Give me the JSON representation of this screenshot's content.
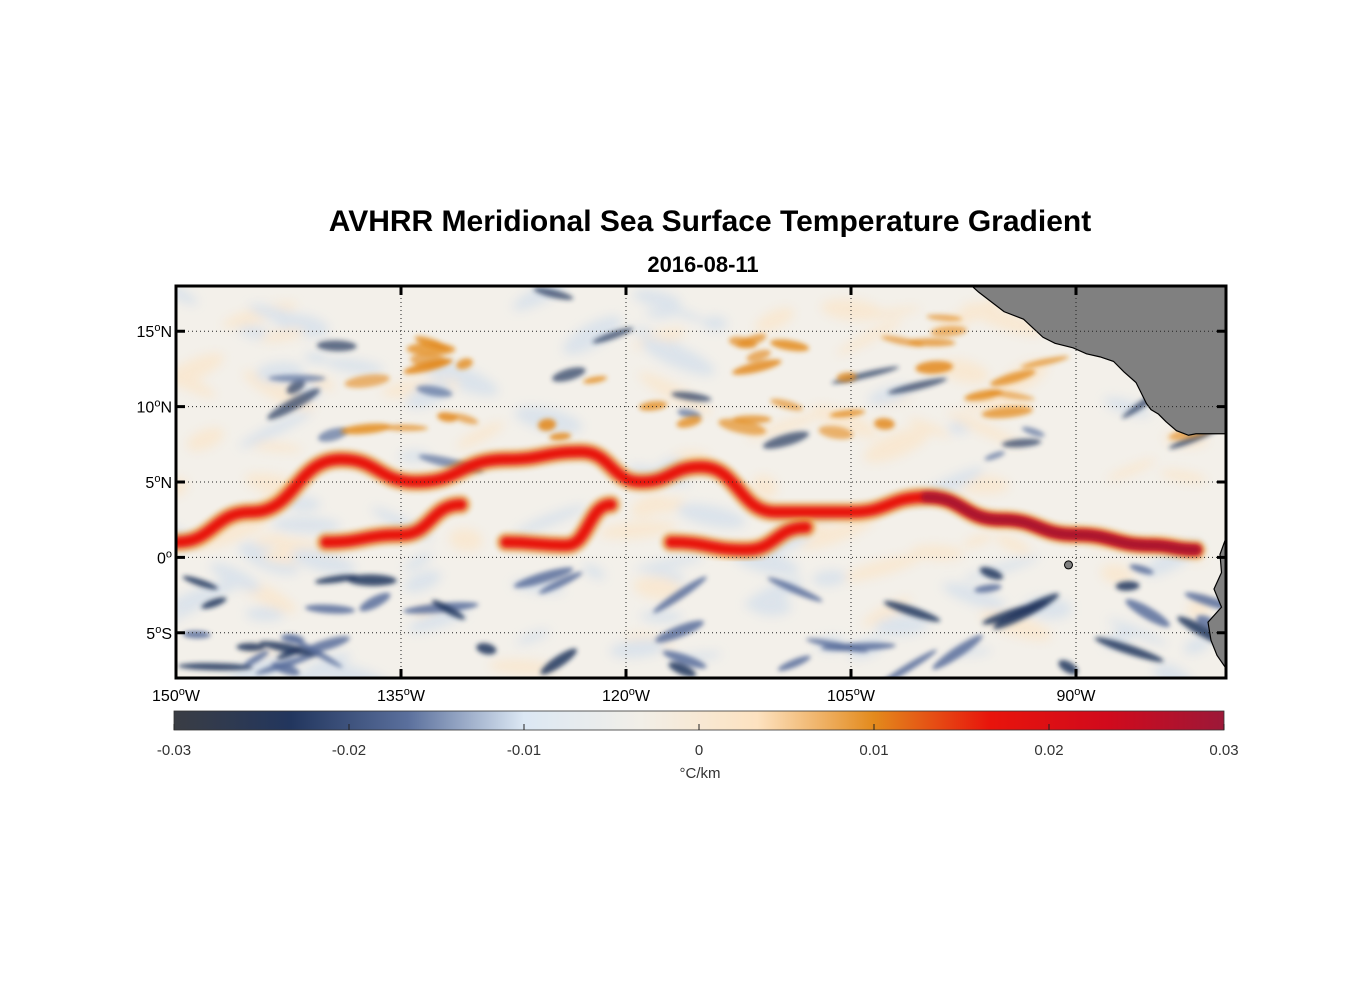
{
  "title": "AVHRR Meridional Sea Surface Temperature Gradient",
  "subtitle": "2016-08-11",
  "map": {
    "lon_range": [
      -150,
      -80
    ],
    "lat_range": [
      -8,
      18
    ],
    "lat_ticks": [
      {
        "value": 15,
        "deg": "15",
        "hemi": "N"
      },
      {
        "value": 10,
        "deg": "10",
        "hemi": "N"
      },
      {
        "value": 5,
        "deg": "5",
        "hemi": "N"
      },
      {
        "value": 0,
        "deg": "0",
        "hemi": ""
      },
      {
        "value": -5,
        "deg": "5",
        "hemi": "S"
      }
    ],
    "lon_ticks": [
      {
        "value": -150,
        "deg": "150",
        "hemi": "W"
      },
      {
        "value": -135,
        "deg": "135",
        "hemi": "W"
      },
      {
        "value": -120,
        "deg": "120",
        "hemi": "W"
      },
      {
        "value": -105,
        "deg": "105",
        "hemi": "W"
      },
      {
        "value": -90,
        "deg": "90",
        "hemi": "W"
      }
    ],
    "grid": "dotted",
    "land_color": "#808080"
  },
  "colorbar": {
    "min": -0.03,
    "max": 0.03,
    "ticks": [
      "-0.03",
      "-0.02",
      "-0.01",
      "0",
      "0.01",
      "0.02",
      "0.03"
    ],
    "unit_label": "°C/km",
    "stops": [
      "#3a3d44",
      "#22365e",
      "#5a6f9c",
      "#dce8f4",
      "#f2efe8",
      "#fde2c0",
      "#e38a1c",
      "#e8140c",
      "#d10a1c",
      "#9c1838"
    ]
  },
  "chart_data": {
    "type": "heatmap",
    "title": "AVHRR Meridional Sea Surface Temperature Gradient",
    "subtitle": "2016-08-11",
    "variable_unit": "°C/km",
    "x_range": [
      -150,
      -80
    ],
    "y_range": [
      -8,
      18
    ],
    "color_range": [
      -0.03,
      0.03
    ],
    "features": [
      {
        "kind": "positive-front",
        "lon": [
          -150,
          -145,
          -139,
          -134,
          -128,
          -123,
          -119,
          -115,
          -110,
          -105,
          -100,
          -95,
          -90,
          -85,
          -82
        ],
        "lat": [
          1,
          3,
          6.5,
          5,
          6.5,
          7,
          5,
          6,
          3,
          3,
          4,
          2.5,
          1.5,
          0.8,
          0.5
        ]
      },
      {
        "kind": "positive-front",
        "lon": [
          -140,
          -135,
          -131
        ],
        "lat": [
          1.0,
          1.5,
          3.5
        ]
      },
      {
        "kind": "positive-front",
        "lon": [
          -128,
          -124,
          -121
        ],
        "lat": [
          1.0,
          0.8,
          3.5
        ]
      },
      {
        "kind": "positive-front",
        "lon": [
          -117,
          -112,
          -108
        ],
        "lat": [
          1.0,
          0.5,
          2.0
        ]
      },
      {
        "kind": "negative-band",
        "lat_range": [
          -8,
          0
        ]
      }
    ]
  }
}
